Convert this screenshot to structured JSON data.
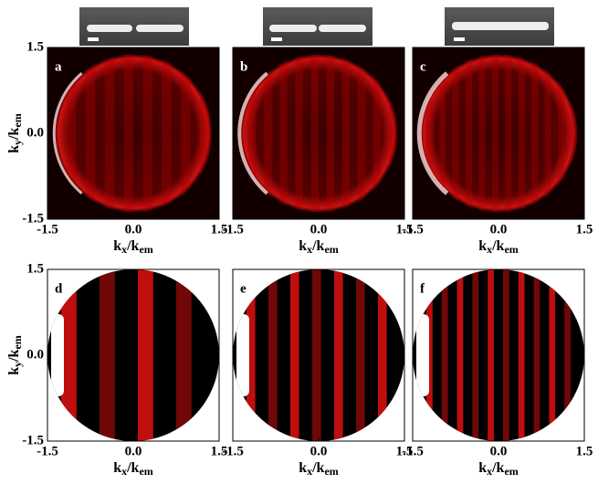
{
  "axes": {
    "lim": [
      -1.5,
      1.5
    ],
    "ticks": [
      -1.5,
      {
        "value": 0,
        "label": "0.0"
      },
      1.5
    ],
    "x_label": {
      "base": "k",
      "sub": "x",
      "sep": "/k",
      "sub2": "em"
    },
    "y_label": {
      "base": "k",
      "sub": "y",
      "sep": "/k",
      "sub2": "em"
    }
  },
  "panels": [
    {
      "label": "a"
    },
    {
      "label": "b"
    },
    {
      "label": "c"
    },
    {
      "label": "d"
    },
    {
      "label": "e"
    },
    {
      "label": "f"
    }
  ]
}
